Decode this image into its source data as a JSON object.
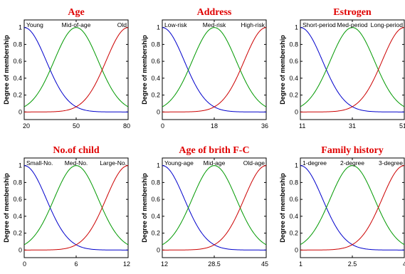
{
  "colors": {
    "title": "#e00000",
    "mf1": "#0000cc",
    "mf2": "#009900",
    "mf3": "#cc0000",
    "axis": "#000000"
  },
  "chart_data": [
    {
      "type": "line",
      "title": "Age",
      "ylabel": "Degree of membership",
      "xlim": [
        20,
        80
      ],
      "ylim": [
        0,
        1
      ],
      "xticks": [
        "20",
        "50",
        "80"
      ],
      "yticks": [
        "0",
        "0.2",
        "0.4",
        "0.6",
        "0.8",
        "1"
      ],
      "series": [
        {
          "name": "Young",
          "shape": "gaussmf",
          "center": 20,
          "sigma": 12.7
        },
        {
          "name": "Mid-of-age",
          "shape": "gaussmf",
          "center": 50,
          "sigma": 12.7
        },
        {
          "name": "Old",
          "shape": "gaussmf",
          "center": 80,
          "sigma": 12.7
        }
      ]
    },
    {
      "type": "line",
      "title": "Address",
      "ylabel": "Degree of membership",
      "xlim": [
        0,
        36
      ],
      "ylim": [
        0,
        1
      ],
      "xticks": [
        "0",
        "18",
        "36"
      ],
      "yticks": [
        "0",
        "0.2",
        "0.4",
        "0.6",
        "0.8",
        "1"
      ],
      "series": [
        {
          "name": "Low-risk",
          "shape": "gaussmf",
          "center": 0,
          "sigma": 7.6
        },
        {
          "name": "Med-risk",
          "shape": "gaussmf",
          "center": 18,
          "sigma": 7.6
        },
        {
          "name": "High-risk",
          "shape": "gaussmf",
          "center": 36,
          "sigma": 7.6
        }
      ]
    },
    {
      "type": "line",
      "title": "Estrogen",
      "ylabel": "Degree of membership",
      "xlim": [
        11,
        51
      ],
      "ylim": [
        0,
        1
      ],
      "xticks": [
        "11",
        "31",
        "51"
      ],
      "yticks": [
        "0",
        "0.2",
        "0.4",
        "0.6",
        "0.8",
        "1"
      ],
      "series": [
        {
          "name": "Short-period",
          "shape": "gaussmf",
          "center": 11,
          "sigma": 8.5
        },
        {
          "name": "Med-period",
          "shape": "gaussmf",
          "center": 31,
          "sigma": 8.5
        },
        {
          "name": "Long-period",
          "shape": "gaussmf",
          "center": 51,
          "sigma": 8.5
        }
      ]
    },
    {
      "type": "line",
      "title": "No.of child",
      "ylabel": "Degree of membership",
      "xlim": [
        0,
        12
      ],
      "ylim": [
        0,
        1
      ],
      "xticks": [
        "0",
        "6",
        "12"
      ],
      "yticks": [
        "0",
        "0.2",
        "0.4",
        "0.6",
        "0.8",
        "1"
      ],
      "series": [
        {
          "name": "Small-No.",
          "shape": "gaussmf",
          "center": 0,
          "sigma": 2.55
        },
        {
          "name": "Med-No.",
          "shape": "gaussmf",
          "center": 6,
          "sigma": 2.55
        },
        {
          "name": "Large-No.",
          "shape": "gaussmf",
          "center": 12,
          "sigma": 2.55
        }
      ]
    },
    {
      "type": "line",
      "title": "Age of brith F-C",
      "ylabel": "Degree of membership",
      "xlim": [
        12,
        45
      ],
      "ylim": [
        0,
        1
      ],
      "xticks": [
        "12",
        "28.5",
        "45"
      ],
      "yticks": [
        "0",
        "0.2",
        "0.4",
        "0.6",
        "0.8",
        "1"
      ],
      "series": [
        {
          "name": "Young-age",
          "shape": "gaussmf",
          "center": 12,
          "sigma": 7.0
        },
        {
          "name": "Mid-age",
          "shape": "gaussmf",
          "center": 28.5,
          "sigma": 7.0
        },
        {
          "name": "Old-age",
          "shape": "gaussmf",
          "center": 45,
          "sigma": 7.0
        }
      ]
    },
    {
      "type": "line",
      "title": "Family history",
      "ylabel": "Degree of membership",
      "xlim": [
        1,
        4
      ],
      "ylim": [
        0,
        1
      ],
      "xticks": [
        "1",
        "2.5",
        "4"
      ],
      "yticks": [
        "0",
        "0.2",
        "0.4",
        "0.6",
        "0.8",
        "1"
      ],
      "series": [
        {
          "name": "1-degree",
          "shape": "gaussmf",
          "center": 1,
          "sigma": 0.64
        },
        {
          "name": "2-degree",
          "shape": "gaussmf",
          "center": 2.5,
          "sigma": 0.64
        },
        {
          "name": "3-degree",
          "shape": "gaussmf",
          "center": 4,
          "sigma": 0.64
        }
      ]
    }
  ]
}
